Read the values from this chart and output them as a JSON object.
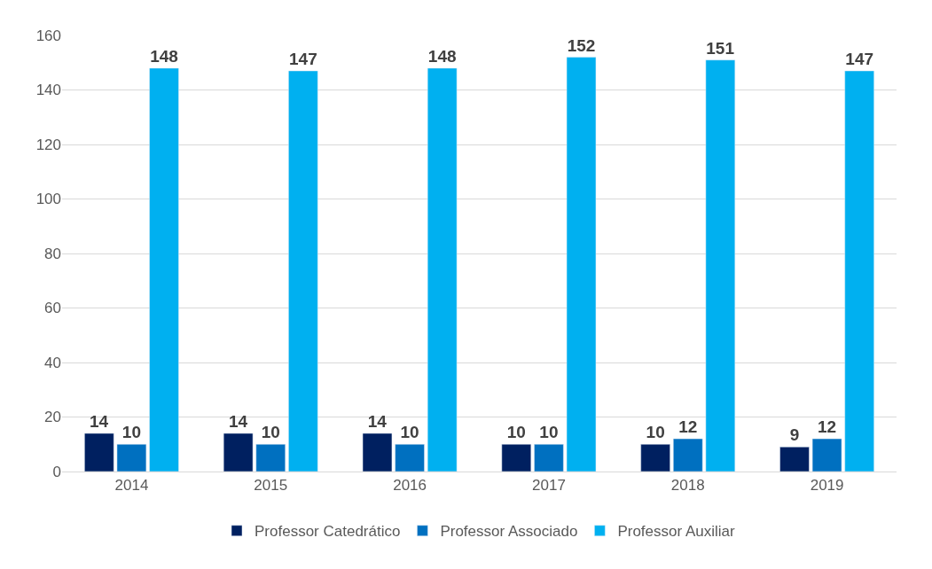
{
  "chart_data": {
    "type": "bar",
    "categories": [
      "2014",
      "2015",
      "2016",
      "2017",
      "2018",
      "2019"
    ],
    "series": [
      {
        "name": "Professor Catedrático",
        "color": "#002060",
        "values": [
          14,
          14,
          14,
          10,
          10,
          9
        ]
      },
      {
        "name": "Professor Associado",
        "color": "#0070c0",
        "values": [
          10,
          10,
          10,
          10,
          12,
          12
        ]
      },
      {
        "name": "Professor Auxiliar",
        "color": "#00b0f0",
        "values": [
          148,
          147,
          148,
          152,
          151,
          147
        ]
      }
    ],
    "ylim": [
      0,
      160
    ],
    "yticks": [
      0,
      20,
      40,
      60,
      80,
      100,
      120,
      140,
      160
    ],
    "grid": "y",
    "legend": "bottom",
    "data_labels": true
  }
}
